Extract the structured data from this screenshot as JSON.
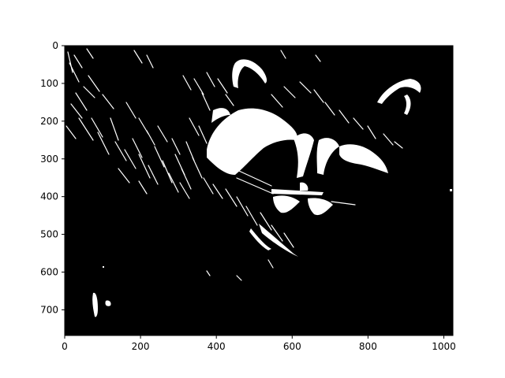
{
  "chart_data": {
    "type": "heatmap",
    "description": "binary thresholded image (imshow, gray colormap)",
    "colormap": [
      "#000000",
      "#ffffff"
    ],
    "image_width": 1024,
    "image_height": 768,
    "origin": "upper",
    "xlim": [
      0,
      1024
    ],
    "ylim": [
      768,
      0
    ],
    "x_ticks": [
      0,
      200,
      400,
      600,
      800,
      1000
    ],
    "y_ticks": [
      0,
      100,
      200,
      300,
      400,
      500,
      600,
      700
    ],
    "grid": false,
    "title": "",
    "xlabel": "",
    "ylabel": ""
  }
}
